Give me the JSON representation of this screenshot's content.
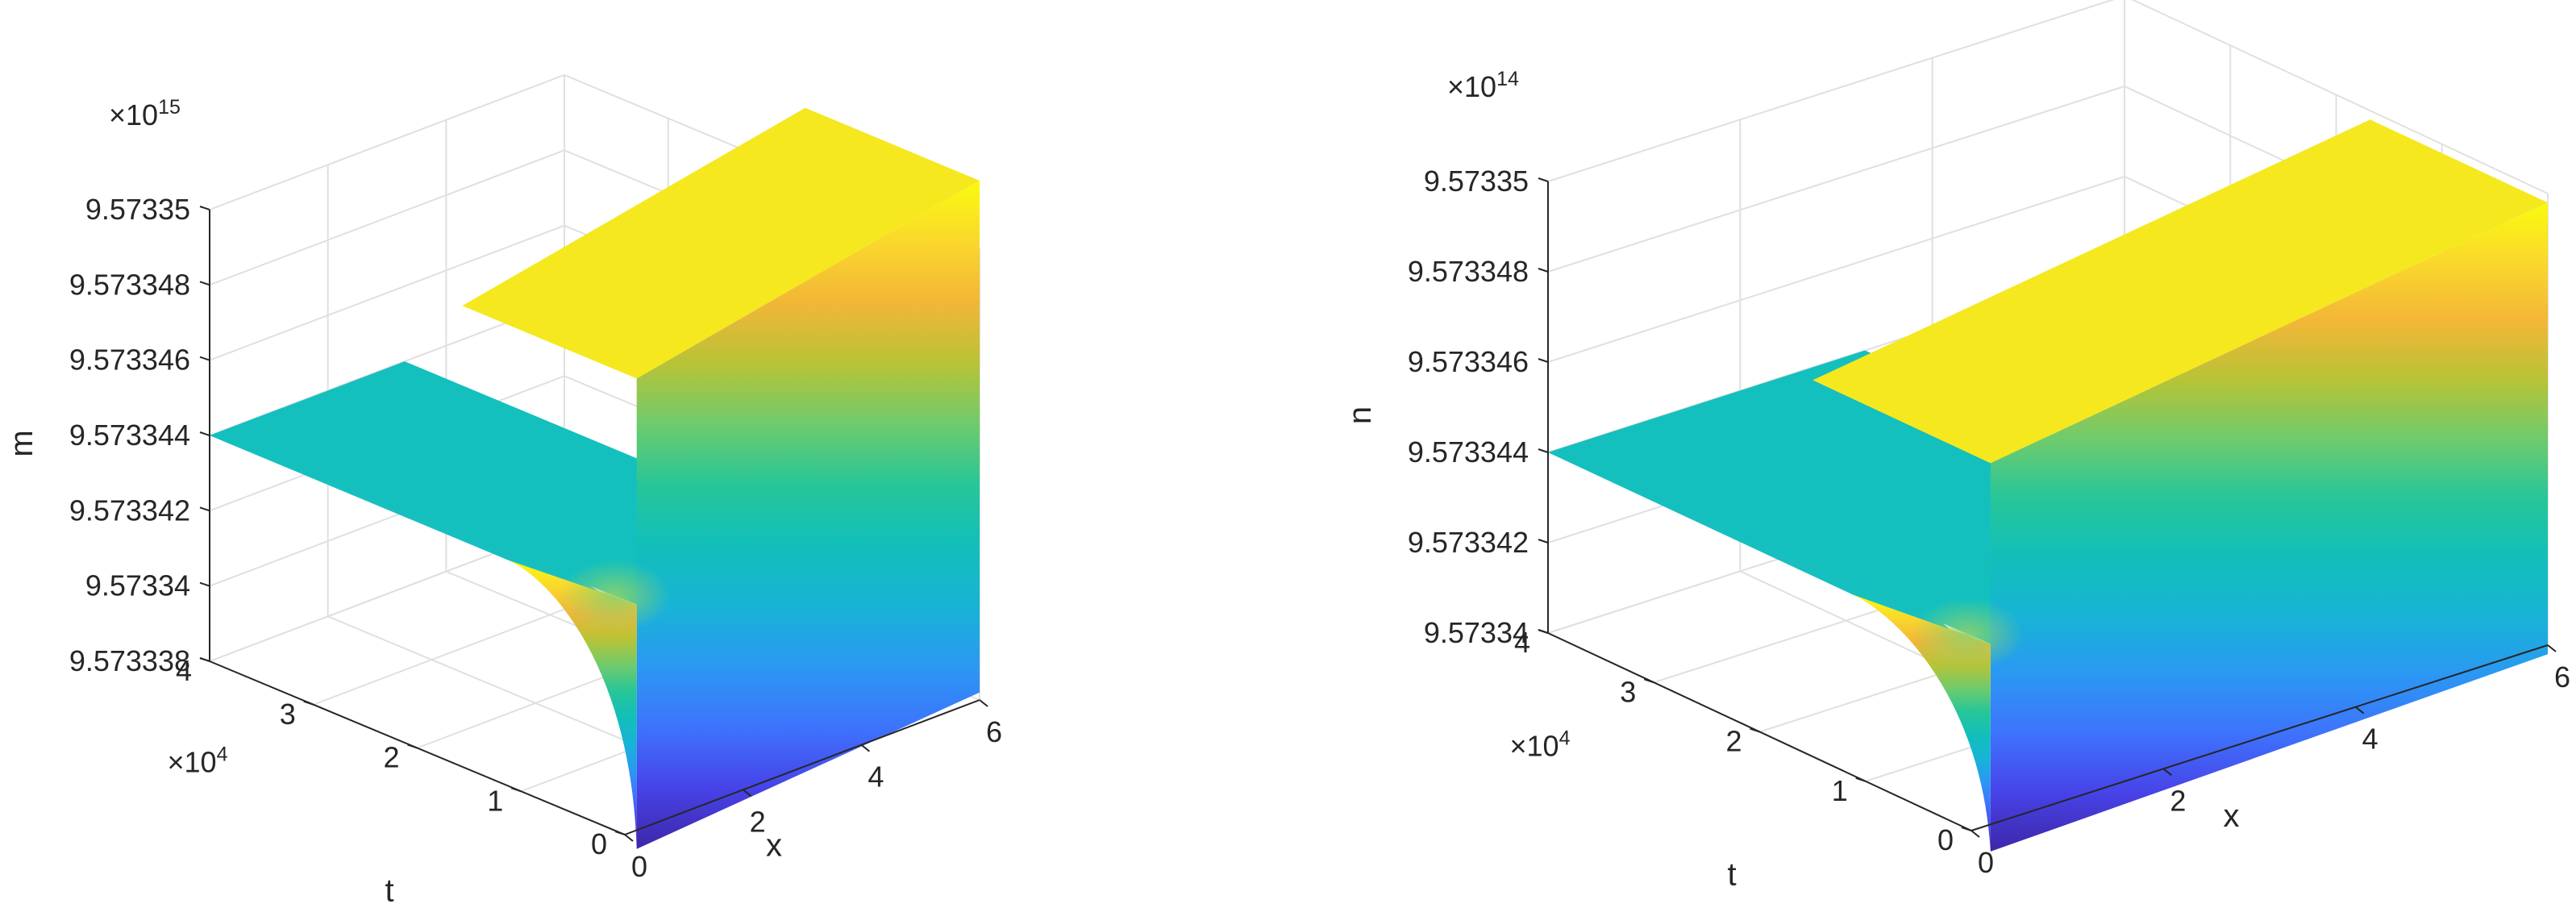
{
  "chart_data": [
    {
      "type": "surface",
      "zlabel": "m",
      "xlabel": "x",
      "ylabel": "t",
      "xlim": [
        0,
        6
      ],
      "ylim": [
        0,
        40000
      ],
      "x_ticks": [
        "0",
        "2",
        "4",
        "6"
      ],
      "y_ticks": [
        "0",
        "1",
        "2",
        "3",
        "4"
      ],
      "y_multiplier": "×10",
      "y_multiplier_exp": "4",
      "z_multiplier": "×10",
      "z_multiplier_exp": "15",
      "z_ticks": [
        "9.573338",
        "9.57334",
        "9.573342",
        "9.573344",
        "9.573346",
        "9.573348",
        "9.57335"
      ],
      "z_tick_values": [
        9.573338,
        9.57334,
        9.573342,
        9.573344,
        9.573346,
        9.573348,
        9.57335
      ],
      "zlim": [
        9.573338,
        9.57335
      ],
      "plateau_value": 9.573344,
      "edge_x0_min": 9.5733375,
      "edge_x0_max": 9.57335,
      "edge_x6_min": 9.5733382,
      "edge_x6_max": 9.5733518,
      "transition_x": 0.2,
      "grid": true,
      "colormap": "parula"
    },
    {
      "type": "surface",
      "zlabel": "n",
      "xlabel": "x",
      "ylabel": "t",
      "xlim": [
        0,
        6
      ],
      "ylim": [
        0,
        40000
      ],
      "x_ticks": [
        "0",
        "2",
        "4",
        "6"
      ],
      "y_ticks": [
        "0",
        "1",
        "2",
        "3",
        "4"
      ],
      "y_multiplier": "×10",
      "y_multiplier_exp": "4",
      "z_multiplier": "×10",
      "z_multiplier_exp": "14",
      "z_ticks": [
        "9.57334",
        "9.573342",
        "9.573344",
        "9.573346",
        "9.573348",
        "9.57335"
      ],
      "z_tick_values": [
        9.57334,
        9.573342,
        9.573344,
        9.573346,
        9.573348,
        9.57335
      ],
      "zlim": [
        9.57334,
        9.57335
      ],
      "plateau_value": 9.573344,
      "edge_x0_min": 9.5733394,
      "edge_x0_max": 9.573348,
      "edge_x6_min": 9.5733398,
      "edge_x6_max": 9.5733498,
      "transition_x": 0.2,
      "grid": true,
      "colormap": "parula"
    }
  ]
}
